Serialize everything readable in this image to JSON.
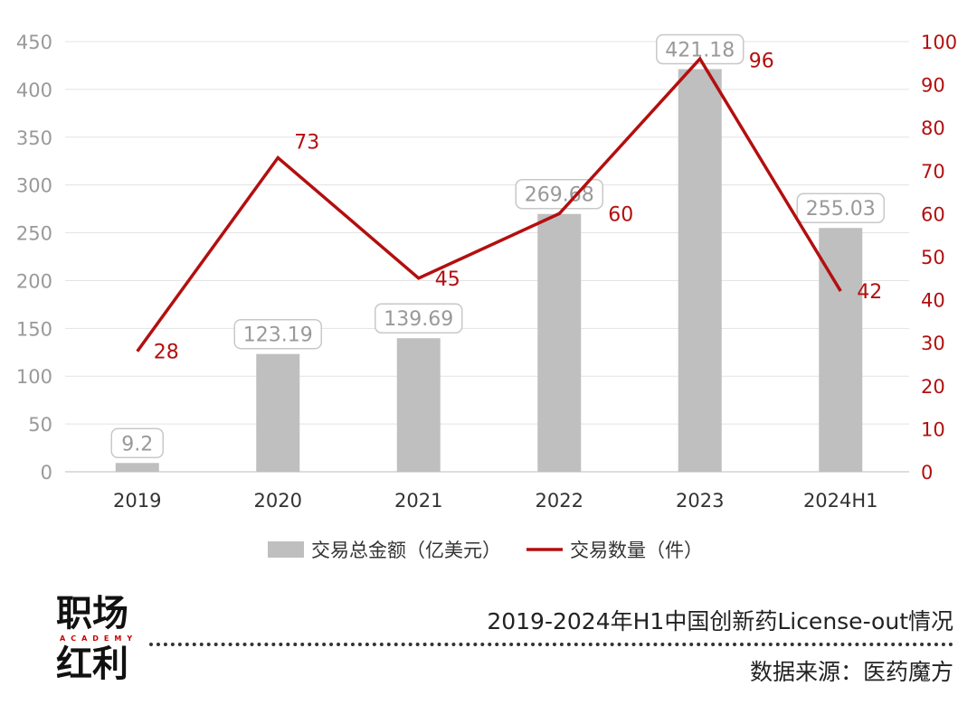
{
  "chart_data": {
    "type": "bar+line",
    "categories": [
      "2019",
      "2020",
      "2021",
      "2022",
      "2023",
      "2024H1"
    ],
    "series": [
      {
        "name": "交易总金额（亿美元）",
        "type": "bar",
        "axis": "left",
        "values": [
          9.2,
          123.19,
          139.69,
          269.68,
          421.18,
          255.03
        ],
        "labels": [
          "9.2",
          "123.19",
          "139.69",
          "269.68",
          "421.18",
          "255.03"
        ],
        "color": "#bfbfbf"
      },
      {
        "name": "交易数量（件）",
        "type": "line",
        "axis": "right",
        "values": [
          28,
          73,
          45,
          60,
          96,
          42
        ],
        "labels": [
          "28",
          "73",
          "45",
          "60",
          "96",
          "42"
        ],
        "color": "#b30f0f"
      }
    ],
    "y_left": {
      "range": [
        0,
        450
      ],
      "ticks": [
        "0",
        "50",
        "100",
        "150",
        "200",
        "250",
        "300",
        "350",
        "400",
        "450"
      ]
    },
    "y_right": {
      "range": [
        0,
        100
      ],
      "ticks": [
        "0",
        "10",
        "20",
        "30",
        "40",
        "50",
        "60",
        "70",
        "80",
        "90",
        "100"
      ],
      "color": "#b30f0f"
    },
    "grid": true,
    "legend": "bottom",
    "title": "2019-2024年H1中国创新药License-out情况",
    "source": "数据来源：医药魔方"
  },
  "logo": {
    "line1": "职场",
    "sub": "ACADEMY",
    "line2": "红利"
  }
}
